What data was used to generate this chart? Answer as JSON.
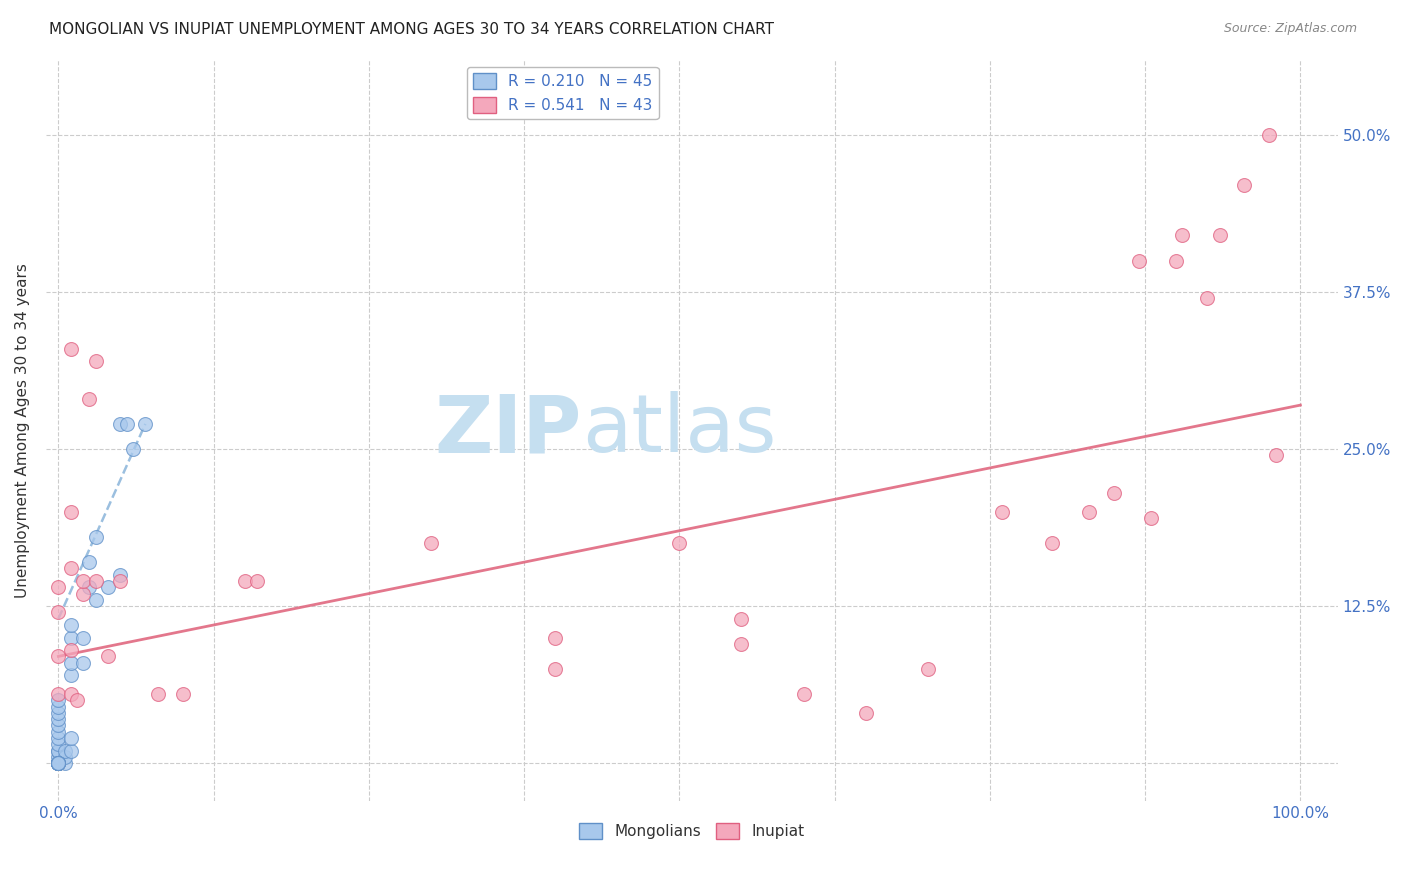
{
  "title": "MONGOLIAN VS INUPIAT UNEMPLOYMENT AMONG AGES 30 TO 34 YEARS CORRELATION CHART",
  "source": "Source: ZipAtlas.com",
  "ylabel": "Unemployment Among Ages 30 to 34 years",
  "xlim": [
    -0.01,
    1.03
  ],
  "ylim": [
    -0.03,
    0.56
  ],
  "xticks": [
    0.0,
    0.125,
    0.25,
    0.375,
    0.5,
    0.625,
    0.75,
    0.875,
    1.0
  ],
  "xticklabels": [
    "0.0%",
    "",
    "",
    "",
    "",
    "",
    "",
    "",
    "100.0%"
  ],
  "yticks": [
    0.0,
    0.125,
    0.25,
    0.375,
    0.5
  ],
  "yticklabels_right": [
    "",
    "12.5%",
    "25.0%",
    "37.5%",
    "50.0%"
  ],
  "watermark_zip": "ZIP",
  "watermark_atlas": "atlas",
  "mongolian_dots": [
    [
      0.0,
      0.0
    ],
    [
      0.0,
      0.0
    ],
    [
      0.0,
      0.0
    ],
    [
      0.0,
      0.0
    ],
    [
      0.0,
      0.0
    ],
    [
      0.0,
      0.0
    ],
    [
      0.0,
      0.0
    ],
    [
      0.0,
      0.0
    ],
    [
      0.0,
      0.005
    ],
    [
      0.0,
      0.01
    ],
    [
      0.0,
      0.01
    ],
    [
      0.0,
      0.015
    ],
    [
      0.0,
      0.02
    ],
    [
      0.0,
      0.025
    ],
    [
      0.0,
      0.03
    ],
    [
      0.0,
      0.035
    ],
    [
      0.0,
      0.04
    ],
    [
      0.0,
      0.045
    ],
    [
      0.0,
      0.05
    ],
    [
      0.005,
      0.0
    ],
    [
      0.005,
      0.005
    ],
    [
      0.005,
      0.01
    ],
    [
      0.01,
      0.01
    ],
    [
      0.01,
      0.02
    ],
    [
      0.01,
      0.07
    ],
    [
      0.01,
      0.08
    ],
    [
      0.01,
      0.1
    ],
    [
      0.01,
      0.11
    ],
    [
      0.02,
      0.08
    ],
    [
      0.02,
      0.1
    ],
    [
      0.025,
      0.14
    ],
    [
      0.025,
      0.16
    ],
    [
      0.03,
      0.13
    ],
    [
      0.03,
      0.18
    ],
    [
      0.04,
      0.14
    ],
    [
      0.05,
      0.15
    ],
    [
      0.05,
      0.27
    ],
    [
      0.055,
      0.27
    ],
    [
      0.06,
      0.25
    ],
    [
      0.07,
      0.27
    ],
    [
      0.0,
      0.0
    ],
    [
      0.0,
      0.0
    ],
    [
      0.0,
      0.0
    ],
    [
      0.0,
      0.0
    ],
    [
      0.0,
      0.0
    ]
  ],
  "inupiat_dots": [
    [
      0.0,
      0.055
    ],
    [
      0.0,
      0.085
    ],
    [
      0.0,
      0.12
    ],
    [
      0.0,
      0.14
    ],
    [
      0.01,
      0.055
    ],
    [
      0.01,
      0.09
    ],
    [
      0.01,
      0.155
    ],
    [
      0.01,
      0.2
    ],
    [
      0.01,
      0.33
    ],
    [
      0.015,
      0.05
    ],
    [
      0.02,
      0.135
    ],
    [
      0.02,
      0.145
    ],
    [
      0.025,
      0.29
    ],
    [
      0.03,
      0.145
    ],
    [
      0.03,
      0.32
    ],
    [
      0.04,
      0.085
    ],
    [
      0.05,
      0.145
    ],
    [
      0.08,
      0.055
    ],
    [
      0.1,
      0.055
    ],
    [
      0.15,
      0.145
    ],
    [
      0.16,
      0.145
    ],
    [
      0.3,
      0.175
    ],
    [
      0.4,
      0.075
    ],
    [
      0.4,
      0.1
    ],
    [
      0.5,
      0.175
    ],
    [
      0.55,
      0.095
    ],
    [
      0.55,
      0.115
    ],
    [
      0.6,
      0.055
    ],
    [
      0.65,
      0.04
    ],
    [
      0.7,
      0.075
    ],
    [
      0.76,
      0.2
    ],
    [
      0.8,
      0.175
    ],
    [
      0.83,
      0.2
    ],
    [
      0.85,
      0.215
    ],
    [
      0.87,
      0.4
    ],
    [
      0.88,
      0.195
    ],
    [
      0.9,
      0.4
    ],
    [
      0.905,
      0.42
    ],
    [
      0.925,
      0.37
    ],
    [
      0.935,
      0.42
    ],
    [
      0.955,
      0.46
    ],
    [
      0.975,
      0.5
    ],
    [
      0.98,
      0.245
    ]
  ],
  "mongolian_trend_x": [
    0.0,
    0.07
  ],
  "mongolian_trend_y": [
    0.115,
    0.27
  ],
  "inupiat_trend_x": [
    0.0,
    1.0
  ],
  "inupiat_trend_y": [
    0.085,
    0.285
  ],
  "dot_size": 100,
  "mongolian_color": "#A8C8EC",
  "inupiat_color": "#F4A8BC",
  "mongolian_edge_color": "#6090C8",
  "inupiat_edge_color": "#E06080",
  "mongolian_trend_color": "#90B8DC",
  "inupiat_trend_color": "#E06880",
  "background_color": "#ffffff",
  "grid_color": "#cccccc",
  "title_color": "#222222",
  "axis_label_color": "#333333",
  "tick_label_color": "#4472C4",
  "watermark_zip_color": "#c5dff0",
  "watermark_atlas_color": "#c5dff0",
  "source_color": "#888888",
  "legend_entries": [
    {
      "label": "R = 0.210   N = 45",
      "color": "#A8C8EC",
      "edge": "#6090C8"
    },
    {
      "label": "R = 0.541   N = 43",
      "color": "#F4A8BC",
      "edge": "#E06080"
    }
  ],
  "bottom_legend": [
    {
      "label": "Mongolians",
      "color": "#A8C8EC",
      "edge": "#6090C8"
    },
    {
      "label": "Inupiat",
      "color": "#F4A8BC",
      "edge": "#E06080"
    }
  ]
}
